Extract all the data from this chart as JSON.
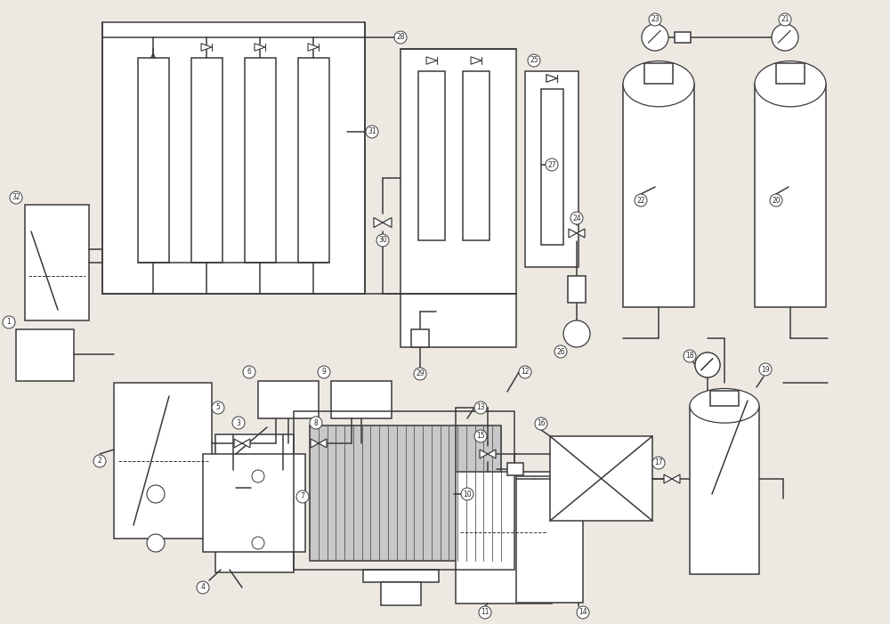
{
  "bg_color": "#ede9e2",
  "lc": "#3a3a3a",
  "lw": 1.1,
  "fs": 5.5
}
